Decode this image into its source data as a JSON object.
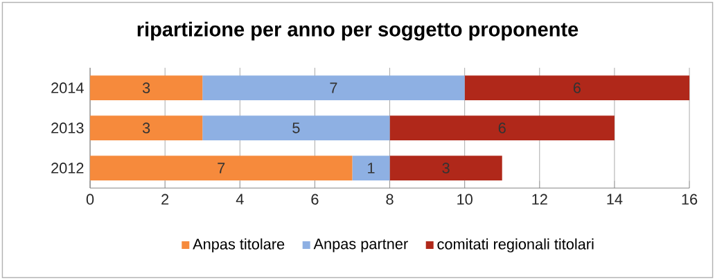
{
  "chart_data": {
    "type": "bar",
    "orientation": "horizontal",
    "stacked": true,
    "title": "ripartizione per anno per soggetto proponente",
    "categories": [
      "2014",
      "2013",
      "2012"
    ],
    "series": [
      {
        "name": "Anpas titolare",
        "color": "#f68a3c",
        "values": [
          3,
          3,
          7
        ]
      },
      {
        "name": "Anpas partner",
        "color": "#8eb0e3",
        "values": [
          7,
          5,
          1
        ]
      },
      {
        "name": "comitati regionali titolari",
        "color": "#b0281a",
        "values": [
          6,
          6,
          3
        ]
      }
    ],
    "xlim": [
      0,
      16
    ],
    "xticks": [
      0,
      2,
      4,
      6,
      8,
      10,
      12,
      14,
      16
    ],
    "grid": "x",
    "legend": "bottom",
    "data_labels": true
  }
}
